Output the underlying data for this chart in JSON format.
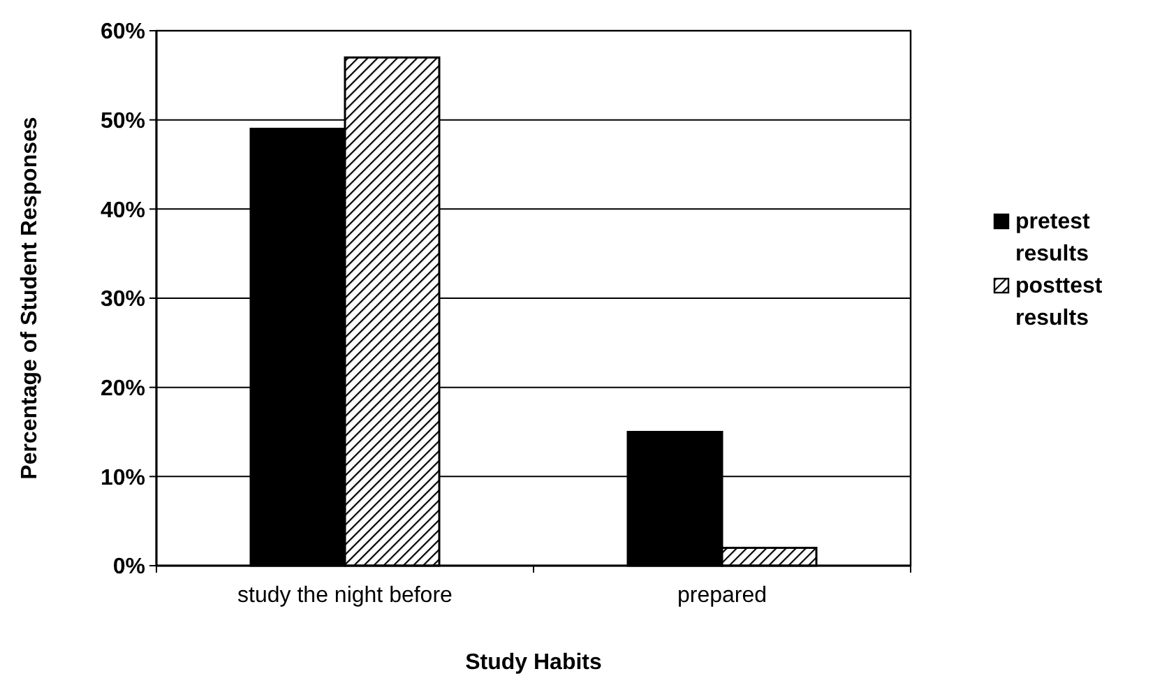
{
  "chart_data": {
    "type": "bar",
    "xlabel": "Study Habits",
    "ylabel": "Percentage of Student Responses",
    "categories": [
      "study the night before",
      "prepared"
    ],
    "series": [
      {
        "name": "pretest results",
        "color": "#000000",
        "values": [
          49,
          15
        ]
      },
      {
        "name": "posttest results",
        "color": "#000000",
        "values": [
          57,
          2
        ]
      }
    ],
    "ylim": [
      0,
      60
    ],
    "yticks": [
      {
        "value": 0,
        "label": "0%"
      },
      {
        "value": 10,
        "label": "10%"
      },
      {
        "value": 20,
        "label": "20%"
      },
      {
        "value": 30,
        "label": "30%"
      },
      {
        "value": 40,
        "label": "40%"
      },
      {
        "value": 50,
        "label": "50%"
      },
      {
        "value": 60,
        "label": "60%"
      }
    ],
    "grid": "y",
    "legend": "right"
  }
}
